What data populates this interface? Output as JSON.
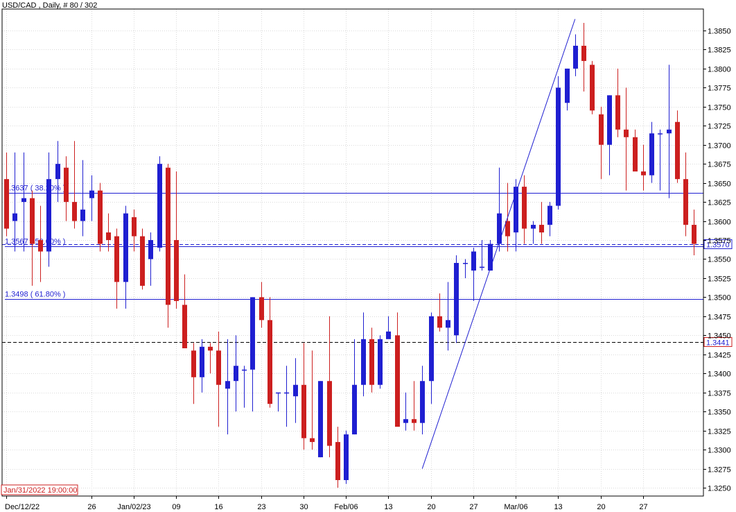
{
  "header": {
    "title": "USD/CAD , Daily, # 80 / 302"
  },
  "colors": {
    "up": "#1f1fd1",
    "down": "#cc1f1f",
    "line": "#1f1fd1",
    "fib": "#1f1fd1",
    "grid": "#d9d9d9",
    "axis": "#000000"
  },
  "chart_data": {
    "type": "candlestick",
    "symbol": "USD/CAD",
    "timeframe": "Daily",
    "ylim": [
      1.324,
      1.387
    ],
    "yticks": [
      "1.3250",
      "1.3275",
      "1.3300",
      "1.3325",
      "1.3350",
      "1.3375",
      "1.3400",
      "1.3425",
      "1.3450",
      "1.3475",
      "1.3500",
      "1.3525",
      "1.3550",
      "1.3575",
      "1.3600",
      "1.3625",
      "1.3650",
      "1.3675",
      "1.3700",
      "1.3725",
      "1.3750",
      "1.3775",
      "1.3800",
      "1.3825",
      "1.3850"
    ],
    "xticks": [
      {
        "i": 0,
        "label": "Dec/12/22"
      },
      {
        "i": 10,
        "label": "26"
      },
      {
        "i": 15,
        "label": "Jan/02/23"
      },
      {
        "i": 20,
        "label": "09"
      },
      {
        "i": 25,
        "label": "16"
      },
      {
        "i": 30,
        "label": "23"
      },
      {
        "i": 35,
        "label": "30"
      },
      {
        "i": 40,
        "label": "Feb/06"
      },
      {
        "i": 45,
        "label": "13"
      },
      {
        "i": 50,
        "label": "20"
      },
      {
        "i": 55,
        "label": "27"
      },
      {
        "i": 60,
        "label": "Mar/06"
      },
      {
        "i": 65,
        "label": "13"
      },
      {
        "i": 70,
        "label": "20"
      },
      {
        "i": 75,
        "label": "27"
      }
    ],
    "candles": [
      [
        1.3655,
        1.369,
        1.358,
        1.359
      ],
      [
        1.36,
        1.369,
        1.356,
        1.361
      ],
      [
        1.3625,
        1.369,
        1.356,
        1.363
      ],
      [
        1.363,
        1.364,
        1.3515,
        1.357
      ],
      [
        1.3575,
        1.362,
        1.352,
        1.356
      ],
      [
        1.356,
        1.369,
        1.354,
        1.3655
      ],
      [
        1.3655,
        1.3705,
        1.3625,
        1.3675
      ],
      [
        1.367,
        1.3685,
        1.36,
        1.3625
      ],
      [
        1.3625,
        1.3705,
        1.359,
        1.36
      ],
      [
        1.36,
        1.368,
        1.358,
        1.3615
      ],
      [
        1.363,
        1.366,
        1.36,
        1.364
      ],
      [
        1.364,
        1.365,
        1.356,
        1.357
      ],
      [
        1.3585,
        1.361,
        1.356,
        1.3575
      ],
      [
        1.358,
        1.359,
        1.3485,
        1.352
      ],
      [
        1.352,
        1.362,
        1.3485,
        1.361
      ],
      [
        1.3605,
        1.3615,
        1.356,
        1.358
      ],
      [
        1.358,
        1.359,
        1.351,
        1.3515
      ],
      [
        1.355,
        1.3585,
        1.3515,
        1.3575
      ],
      [
        1.3565,
        1.3685,
        1.356,
        1.3675
      ],
      [
        1.367,
        1.3675,
        1.346,
        1.349
      ],
      [
        1.3575,
        1.3665,
        1.3485,
        1.3495
      ],
      [
        1.349,
        1.353,
        1.3435,
        1.3433
      ],
      [
        1.343,
        1.344,
        1.336,
        1.3395
      ],
      [
        1.3395,
        1.3445,
        1.3375,
        1.3435
      ],
      [
        1.3435,
        1.344,
        1.34,
        1.343
      ],
      [
        1.343,
        1.3455,
        1.333,
        1.3385
      ],
      [
        1.338,
        1.3445,
        1.332,
        1.339
      ],
      [
        1.339,
        1.345,
        1.335,
        1.341
      ],
      [
        1.3405,
        1.341,
        1.3355,
        1.3405
      ],
      [
        1.3405,
        1.35,
        1.335,
        1.35
      ],
      [
        1.35,
        1.352,
        1.346,
        1.347
      ],
      [
        1.347,
        1.35,
        1.3355,
        1.336
      ],
      [
        1.3375,
        1.3375,
        1.335,
        1.3375
      ],
      [
        1.3375,
        1.341,
        1.333,
        1.3375
      ],
      [
        1.337,
        1.342,
        1.3335,
        1.3385
      ],
      [
        1.3385,
        1.344,
        1.33,
        1.3315
      ],
      [
        1.3315,
        1.343,
        1.33,
        1.331
      ],
      [
        1.329,
        1.339,
        1.329,
        1.339
      ],
      [
        1.339,
        1.3475,
        1.329,
        1.3305
      ],
      [
        1.331,
        1.333,
        1.325,
        1.326
      ],
      [
        1.326,
        1.3325,
        1.3255,
        1.332
      ],
      [
        1.332,
        1.3445,
        1.332,
        1.3385
      ],
      [
        1.3385,
        1.348,
        1.337,
        1.3445
      ],
      [
        1.3445,
        1.346,
        1.3375,
        1.3385
      ],
      [
        1.3385,
        1.345,
        1.338,
        1.3445
      ],
      [
        1.3445,
        1.3475,
        1.345,
        1.3455
      ],
      [
        1.345,
        1.348,
        1.3335,
        1.333
      ],
      [
        1.3335,
        1.3375,
        1.3325,
        1.334
      ],
      [
        1.334,
        1.339,
        1.3325,
        1.3335
      ],
      [
        1.3335,
        1.341,
        1.332,
        1.339
      ],
      [
        1.339,
        1.348,
        1.336,
        1.3475
      ],
      [
        1.3475,
        1.3505,
        1.3455,
        1.346
      ],
      [
        1.346,
        1.352,
        1.343,
        1.347
      ],
      [
        1.345,
        1.3555,
        1.344,
        1.3545
      ],
      [
        1.3545,
        1.355,
        1.3525,
        1.3545
      ],
      [
        1.3535,
        1.3565,
        1.3495,
        1.356
      ],
      [
        1.354,
        1.3575,
        1.3535,
        1.354
      ],
      [
        1.3535,
        1.3575,
        1.3535,
        1.357
      ],
      [
        1.357,
        1.367,
        1.356,
        1.361
      ],
      [
        1.36,
        1.365,
        1.356,
        1.358
      ],
      [
        1.3585,
        1.3655,
        1.356,
        1.3645
      ],
      [
        1.3645,
        1.366,
        1.357,
        1.359
      ],
      [
        1.359,
        1.36,
        1.357,
        1.3595
      ],
      [
        1.3595,
        1.3625,
        1.357,
        1.3585
      ],
      [
        1.3595,
        1.3625,
        1.358,
        1.362
      ],
      [
        1.362,
        1.379,
        1.3615,
        1.3775
      ],
      [
        1.3755,
        1.38,
        1.3745,
        1.38
      ],
      [
        1.38,
        1.3845,
        1.379,
        1.383
      ],
      [
        1.383,
        1.386,
        1.377,
        1.381
      ],
      [
        1.3805,
        1.381,
        1.374,
        1.3745
      ],
      [
        1.374,
        1.375,
        1.3655,
        1.37
      ],
      [
        1.37,
        1.3765,
        1.366,
        1.3765
      ],
      [
        1.3765,
        1.38,
        1.371,
        1.372
      ],
      [
        1.372,
        1.3775,
        1.364,
        1.371
      ],
      [
        1.371,
        1.372,
        1.367,
        1.3665
      ],
      [
        1.3665,
        1.37,
        1.364,
        1.366
      ],
      [
        1.366,
        1.373,
        1.365,
        1.3715
      ],
      [
        1.3715,
        1.372,
        1.364,
        1.3715
      ],
      [
        1.3715,
        1.3805,
        1.363,
        1.372
      ],
      [
        1.373,
        1.3745,
        1.365,
        1.3655
      ],
      [
        1.3655,
        1.369,
        1.358,
        1.3595
      ],
      [
        1.3595,
        1.3615,
        1.3555,
        1.357
      ]
    ],
    "trendline": {
      "from": {
        "i": 49,
        "price": 1.3275
      },
      "to": {
        "i": 67,
        "price": 1.3865
      }
    },
    "fib_levels": [
      {
        "price": 1.3637,
        "label": "1.3637 ( 38.20% )"
      },
      {
        "price": 1.3567,
        "label": "1.3567 ( 50.00% )"
      },
      {
        "price": 1.3498,
        "label": "1.3498 ( 61.80% )"
      }
    ],
    "price_markers": [
      {
        "price": 1.357,
        "label": "1.3570",
        "style": "dashed-blue"
      },
      {
        "price": 1.3441,
        "label": "1.3441",
        "style": "dashed-black"
      }
    ],
    "cursor_date": "Jan/31/2022 19:00:00"
  }
}
